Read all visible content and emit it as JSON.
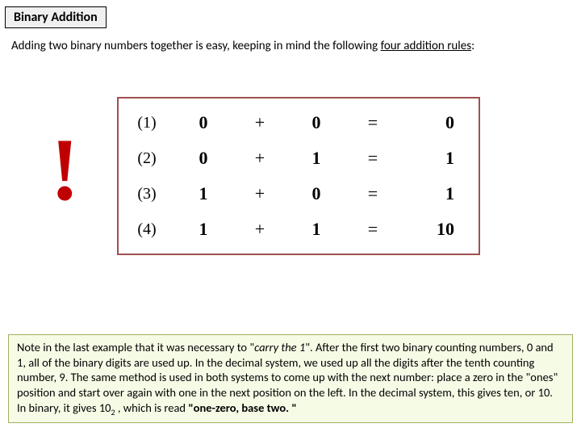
{
  "title": "Binary Addition",
  "intro_lead": "Adding two binary numbers together is easy, keeping in mind the following ",
  "intro_rules_label": "four addition rules",
  "intro_tail": ":",
  "bang": "!",
  "rules_table": {
    "border_color": "#a05050",
    "font_family": "Times New Roman",
    "rows": [
      {
        "idx": "(1)",
        "a": "0",
        "op": "+",
        "b": "0",
        "eq": "=",
        "r": "0"
      },
      {
        "idx": "(2)",
        "a": "0",
        "op": "+",
        "b": "1",
        "eq": "=",
        "r": "1"
      },
      {
        "idx": "(3)",
        "a": "1",
        "op": "+",
        "b": "0",
        "eq": "=",
        "r": "1"
      },
      {
        "idx": "(4)",
        "a": "1",
        "op": "+",
        "b": "1",
        "eq": "=",
        "r": "10"
      }
    ]
  },
  "note": {
    "background_color": "#f6fbe6",
    "border_color": "#a0b060",
    "text_before_carry": "Note in the last example that it was necessary to \"",
    "carry_phrase": "carry the 1",
    "text_after_carry": "\". After the first two binary counting numbers, 0 and 1, all of the binary digits are used up. In the decimal system, we used up all the digits after the tenth counting number, 9. The same method is used in both systems to come up with the next number: place a zero in the \"ones\" position and start over again with one in the next position on the left. In the decimal system, this gives ten, or 10. In binary, it gives ",
    "value_main": "10",
    "value_sub": "2",
    "text_tail": " , which is read ",
    "read_as": "\"one-zero, base two. \""
  }
}
